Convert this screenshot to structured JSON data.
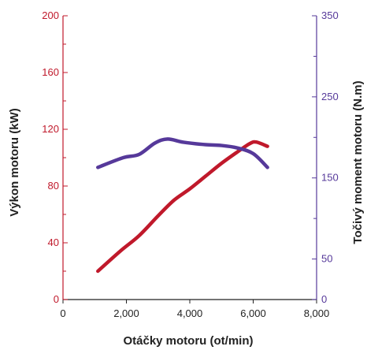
{
  "chart_data": {
    "type": "line",
    "xlabel": "Otáčky motoru (ot/min)",
    "ylabel_left": "Výkon motoru (kW)",
    "ylabel_right": "Točivý moment motoru (N.m)",
    "xlim": [
      0,
      8000
    ],
    "ylim_left": [
      0,
      200
    ],
    "ylim_right": [
      0,
      350
    ],
    "x_ticks": [
      0,
      2000,
      4000,
      6000,
      8000
    ],
    "x_tick_labels": [
      "0",
      "2,000",
      "4,000",
      "6,000",
      "8,000"
    ],
    "y_left_ticks": [
      0,
      40,
      80,
      120,
      160,
      200
    ],
    "y_left_tick_labels": [
      "0",
      "40",
      "80",
      "120",
      "160",
      "200"
    ],
    "y_right_ticks": [
      0,
      50,
      150,
      250,
      350
    ],
    "y_right_tick_labels": [
      "0",
      "50",
      "150",
      "250",
      "350"
    ],
    "grid": false,
    "series": [
      {
        "axis": "left",
        "color": "#c0192b",
        "values": [
          {
            "x": 1100,
            "y": 20
          },
          {
            "x": 1800,
            "y": 34
          },
          {
            "x": 2400,
            "y": 45
          },
          {
            "x": 3000,
            "y": 59
          },
          {
            "x": 3500,
            "y": 70
          },
          {
            "x": 4000,
            "y": 78
          },
          {
            "x": 4500,
            "y": 87
          },
          {
            "x": 5000,
            "y": 96
          },
          {
            "x": 5500,
            "y": 104
          },
          {
            "x": 5900,
            "y": 110
          },
          {
            "x": 6100,
            "y": 111
          },
          {
            "x": 6450,
            "y": 108
          }
        ]
      },
      {
        "axis": "right",
        "color": "#56399a",
        "values": [
          {
            "x": 1100,
            "y": 163
          },
          {
            "x": 1900,
            "y": 175
          },
          {
            "x": 2400,
            "y": 179
          },
          {
            "x": 2900,
            "y": 193
          },
          {
            "x": 3300,
            "y": 198
          },
          {
            "x": 3800,
            "y": 194
          },
          {
            "x": 4500,
            "y": 191
          },
          {
            "x": 5000,
            "y": 190
          },
          {
            "x": 5500,
            "y": 187
          },
          {
            "x": 6000,
            "y": 180
          },
          {
            "x": 6450,
            "y": 163
          }
        ]
      }
    ]
  },
  "colors": {
    "left_axis": "#c0192b",
    "right_axis": "#56399a",
    "x_axis": "#222222"
  }
}
